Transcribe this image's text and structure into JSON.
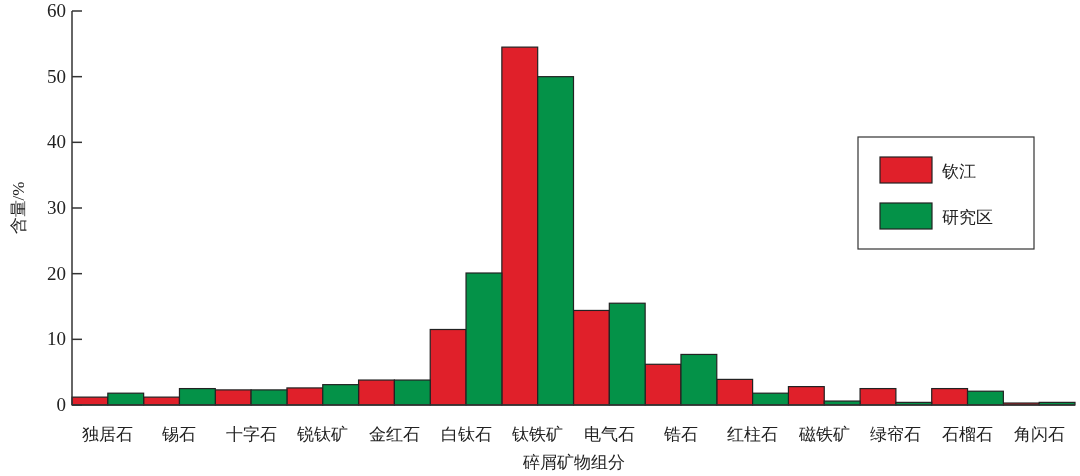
{
  "chart_data": {
    "type": "bar",
    "xlabel": "碎屑矿物组分",
    "ylabel": "含量/%",
    "categories": [
      "独居石",
      "锡石",
      "十字石",
      "锐钛矿",
      "金红石",
      "白钛石",
      "钛铁矿",
      "电气石",
      "锆石",
      "红柱石",
      "磁铁矿",
      "绿帘石",
      "石榴石",
      "角闪石"
    ],
    "series": [
      {
        "name": "钦江",
        "color": "#e0202a",
        "values": [
          1.2,
          1.2,
          2.3,
          2.6,
          3.8,
          11.5,
          54.5,
          14.4,
          6.2,
          3.9,
          2.8,
          2.5,
          2.5,
          0.3
        ]
      },
      {
        "name": "研究区",
        "color": "#049248",
        "values": [
          1.8,
          2.5,
          2.3,
          3.1,
          3.8,
          20.1,
          50,
          15.5,
          7.7,
          1.8,
          0.6,
          0.4,
          2.1,
          0.4
        ]
      }
    ],
    "ylim": [
      0,
      60
    ],
    "yticks": [
      0,
      10,
      20,
      30,
      40,
      50,
      60
    ],
    "legend": "right",
    "grid": false
  }
}
